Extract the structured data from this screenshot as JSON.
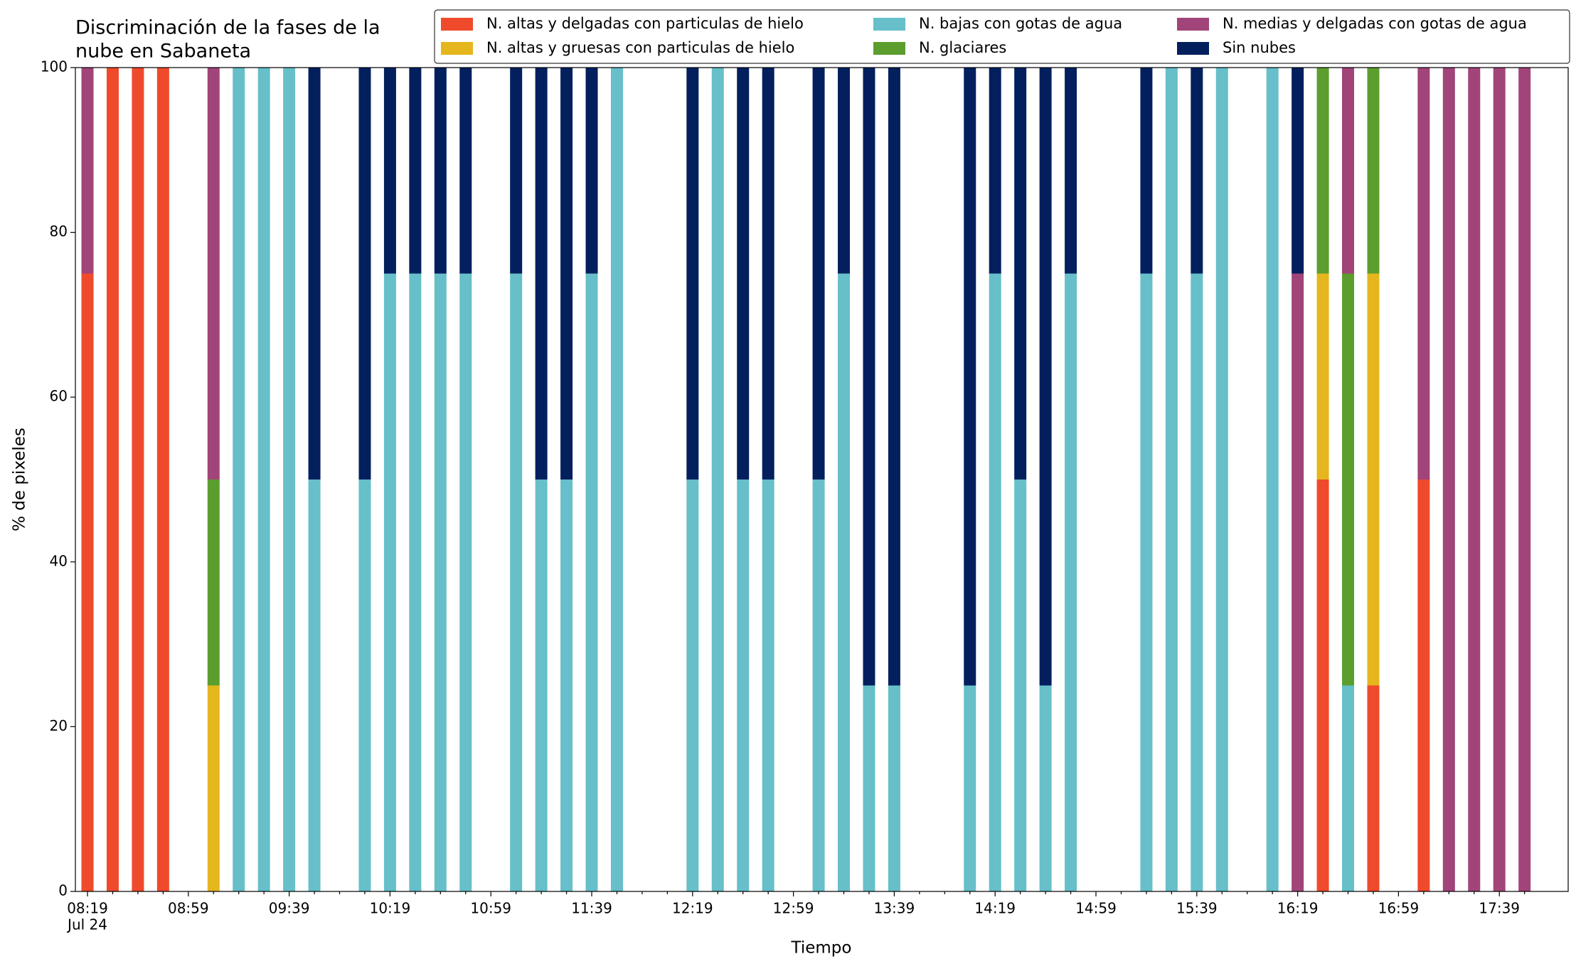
{
  "chart_data": {
    "type": "stacked_bar",
    "title": [
      "Discriminación de la fases de la",
      "nube en Sabaneta"
    ],
    "xlabel": "Tiempo",
    "ylabel": "% de pixeles",
    "categories": [
      "08:19",
      null,
      null,
      null,
      "08:59",
      null,
      null,
      null,
      "09:39",
      null,
      null,
      null,
      "10:19",
      null,
      null,
      null,
      "10:59",
      null,
      null,
      null,
      "11:39",
      null,
      null,
      null,
      "12:19",
      null,
      null,
      null,
      "12:59",
      null,
      null,
      null,
      "13:39",
      null,
      null,
      null,
      "14:19",
      null,
      null,
      null,
      "14:59",
      null,
      null,
      null,
      "15:39",
      null,
      null,
      null,
      "16:19",
      null,
      null,
      null,
      "16:59",
      null,
      null,
      null,
      "17:39",
      null
    ],
    "x_date_label": "Jul 24",
    "ylim": [
      0,
      100
    ],
    "yticks": [
      0,
      20,
      40,
      60,
      80,
      100
    ],
    "grid": false,
    "legend": "upper right",
    "series": [
      {
        "name": "N. altas y delgadas con particulas de hielo",
        "color": "#ef4a2b",
        "values": [
          75,
          100,
          100,
          100,
          0,
          0,
          0,
          0,
          0,
          0,
          0,
          0,
          0,
          0,
          0,
          0,
          0,
          0,
          0,
          0,
          0,
          0,
          0,
          0,
          0,
          0,
          0,
          0,
          0,
          0,
          0,
          0,
          0,
          0,
          0,
          0,
          0,
          0,
          0,
          0,
          0,
          0,
          0,
          0,
          0,
          0,
          0,
          0,
          0,
          50,
          0,
          25,
          0,
          50,
          0,
          0,
          0,
          0
        ]
      },
      {
        "name": "N. altas y gruesas con particulas de hielo",
        "color": "#e6b61e",
        "values": [
          0,
          0,
          0,
          0,
          0,
          25,
          0,
          0,
          0,
          0,
          0,
          0,
          0,
          0,
          0,
          0,
          0,
          0,
          0,
          0,
          0,
          0,
          0,
          0,
          0,
          0,
          0,
          0,
          0,
          0,
          0,
          0,
          0,
          0,
          0,
          0,
          0,
          0,
          0,
          0,
          0,
          0,
          0,
          0,
          0,
          0,
          0,
          0,
          0,
          25,
          0,
          50,
          0,
          0,
          0,
          0,
          0,
          0
        ]
      },
      {
        "name": "N. bajas con gotas de agua",
        "color": "#66bfc9",
        "values": [
          0,
          0,
          0,
          0,
          0,
          0,
          100,
          100,
          100,
          50,
          0,
          50,
          75,
          75,
          75,
          75,
          0,
          75,
          50,
          50,
          75,
          100,
          0,
          0,
          50,
          100,
          50,
          50,
          0,
          50,
          75,
          25,
          25,
          0,
          0,
          25,
          75,
          50,
          25,
          75,
          0,
          0,
          75,
          100,
          75,
          100,
          0,
          100,
          0,
          0,
          25,
          0,
          0,
          0,
          0,
          0,
          0,
          0
        ]
      },
      {
        "name": "N. glaciares",
        "color": "#5b9e2e",
        "values": [
          0,
          0,
          0,
          0,
          0,
          25,
          0,
          0,
          0,
          0,
          0,
          0,
          0,
          0,
          0,
          0,
          0,
          0,
          0,
          0,
          0,
          0,
          0,
          0,
          0,
          0,
          0,
          0,
          0,
          0,
          0,
          0,
          0,
          0,
          0,
          0,
          0,
          0,
          0,
          0,
          0,
          0,
          0,
          0,
          0,
          0,
          0,
          0,
          0,
          25,
          50,
          25,
          0,
          0,
          0,
          0,
          0,
          0
        ]
      },
      {
        "name": "N. medias y delgadas con gotas de agua",
        "color": "#a14479",
        "values": [
          25,
          0,
          0,
          0,
          0,
          50,
          0,
          0,
          0,
          0,
          0,
          0,
          0,
          0,
          0,
          0,
          0,
          0,
          0,
          0,
          0,
          0,
          0,
          0,
          0,
          0,
          0,
          0,
          0,
          0,
          0,
          0,
          0,
          0,
          0,
          0,
          0,
          0,
          0,
          0,
          0,
          0,
          0,
          0,
          0,
          0,
          0,
          0,
          75,
          0,
          25,
          0,
          0,
          50,
          100,
          100,
          100,
          100
        ]
      },
      {
        "name": "Sin nubes",
        "color": "#031f5e",
        "values": [
          0,
          0,
          0,
          0,
          0,
          0,
          0,
          0,
          0,
          50,
          0,
          50,
          25,
          25,
          25,
          25,
          0,
          25,
          50,
          50,
          25,
          0,
          0,
          0,
          50,
          0,
          50,
          50,
          0,
          50,
          25,
          75,
          75,
          0,
          0,
          75,
          25,
          50,
          75,
          25,
          0,
          0,
          25,
          0,
          25,
          0,
          0,
          0,
          25,
          0,
          0,
          0,
          0,
          0,
          0,
          0,
          0,
          0
        ]
      }
    ]
  }
}
